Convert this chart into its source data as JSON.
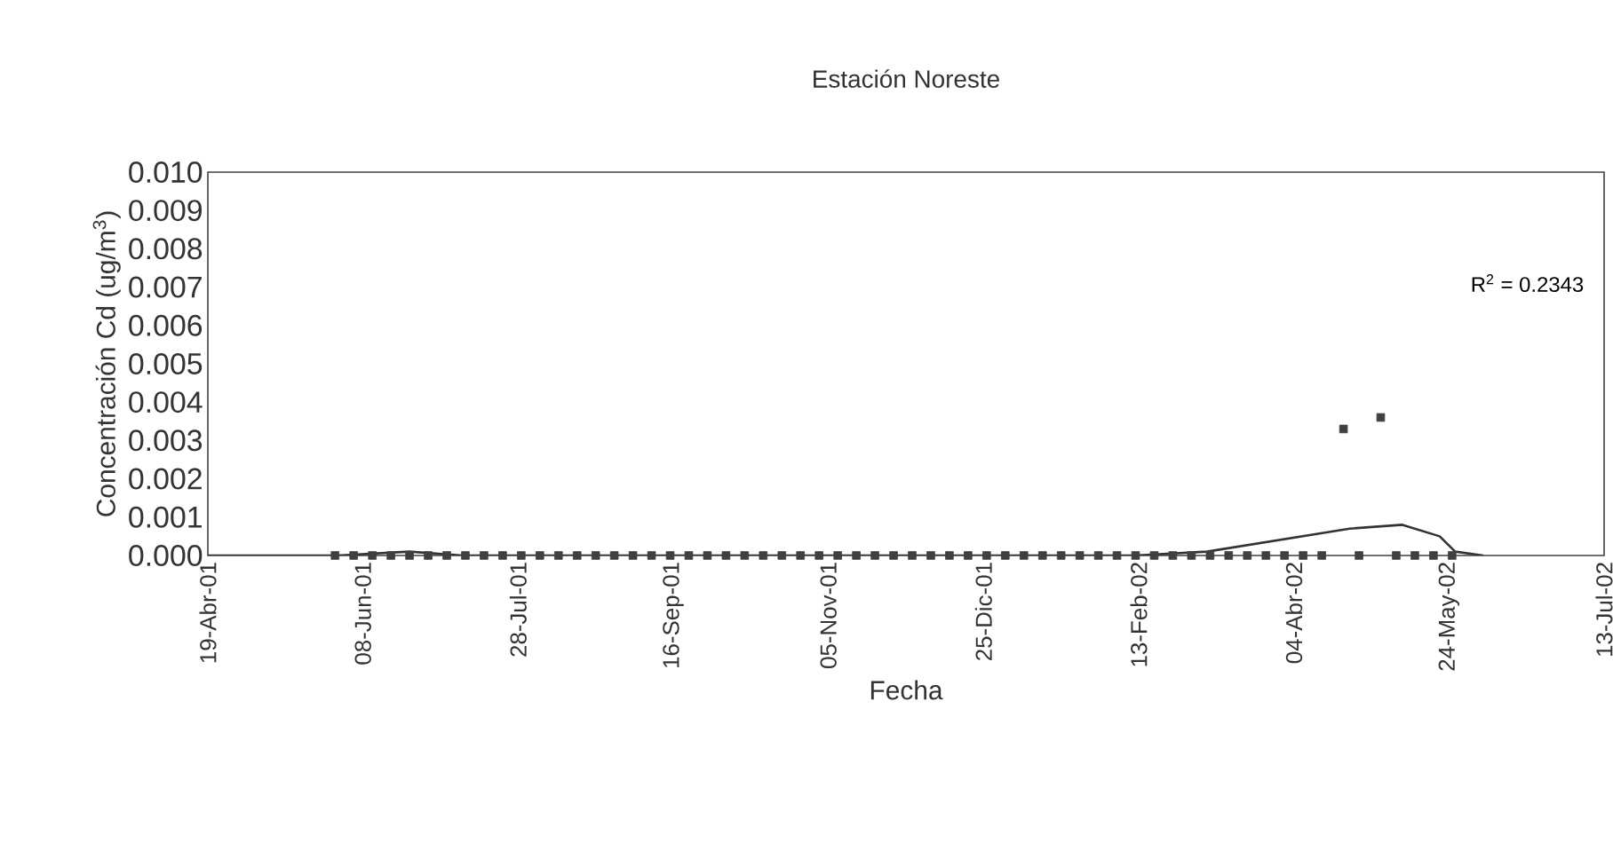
{
  "chart_data": {
    "type": "scatter",
    "title": "Estación Noreste",
    "xlabel": "Fecha",
    "ylabel": "Concentración Cd (ug/m$^{3}$)",
    "xlim": [
      "2001-04-19",
      "2002-07-13"
    ],
    "xticks": [
      {
        "value": "2001-04-19",
        "label": "19-Abr-01"
      },
      {
        "value": "2001-06-08",
        "label": "08-Jun-01"
      },
      {
        "value": "2001-07-28",
        "label": "28-Jul-01"
      },
      {
        "value": "2001-09-16",
        "label": "16-Sep-01"
      },
      {
        "value": "2001-11-05",
        "label": "05-Nov-01"
      },
      {
        "value": "2001-12-25",
        "label": "25-Dic-01"
      },
      {
        "value": "2002-02-13",
        "label": "13-Feb-02"
      },
      {
        "value": "2002-04-04",
        "label": "04-Abr-02"
      },
      {
        "value": "2002-05-24",
        "label": "24-May-02"
      },
      {
        "value": "2002-07-13",
        "label": "13-Jul-02"
      }
    ],
    "ylim": [
      0,
      0.01
    ],
    "yticks": [
      {
        "value": 0,
        "label": "0.000"
      },
      {
        "value": 0.001,
        "label": "0.001"
      },
      {
        "value": 0.002,
        "label": "0.002"
      },
      {
        "value": 0.003,
        "label": "0.003"
      },
      {
        "value": 0.004,
        "label": "0.004"
      },
      {
        "value": 0.005,
        "label": "0.005"
      },
      {
        "value": 0.006,
        "label": "0.006"
      },
      {
        "value": 0.007,
        "label": "0.007"
      },
      {
        "value": 0.008,
        "label": "0.008"
      },
      {
        "value": 0.009,
        "label": "0.009"
      },
      {
        "value": 0.01,
        "label": "0.010"
      }
    ],
    "series": [
      {
        "marker": "square",
        "color": "#404040",
        "x": [
          "2001-05-30",
          "2001-06-05",
          "2001-06-11",
          "2001-06-17",
          "2001-06-23",
          "2001-06-29",
          "2001-07-05",
          "2001-07-11",
          "2001-07-17",
          "2001-07-23",
          "2001-07-29",
          "2001-08-04",
          "2001-08-10",
          "2001-08-16",
          "2001-08-22",
          "2001-08-28",
          "2001-09-03",
          "2001-09-09",
          "2001-09-15",
          "2001-09-21",
          "2001-09-27",
          "2001-10-03",
          "2001-10-09",
          "2001-10-15",
          "2001-10-21",
          "2001-10-27",
          "2001-11-02",
          "2001-11-08",
          "2001-11-14",
          "2001-11-20",
          "2001-11-26",
          "2001-12-02",
          "2001-12-08",
          "2001-12-14",
          "2001-12-20",
          "2001-12-26",
          "2002-01-01",
          "2002-01-07",
          "2002-01-13",
          "2002-01-19",
          "2002-01-25",
          "2002-01-31",
          "2002-02-06",
          "2002-02-12",
          "2002-02-18",
          "2002-02-24",
          "2002-03-02",
          "2002-03-08",
          "2002-03-14",
          "2002-03-20",
          "2002-03-26",
          "2002-04-01",
          "2002-04-07",
          "2002-04-13",
          "2002-04-20",
          "2002-04-25",
          "2002-05-02",
          "2002-05-07",
          "2002-05-13",
          "2002-05-19",
          "2002-05-25"
        ],
        "values": [
          0,
          0,
          0,
          0,
          0,
          0,
          0,
          0,
          0,
          0,
          0,
          0,
          0,
          0,
          0,
          0,
          0,
          0,
          0,
          0,
          0,
          0,
          0,
          0,
          0,
          0,
          0,
          0,
          0,
          0,
          0,
          0,
          0,
          0,
          0,
          0,
          0,
          0,
          0,
          0,
          0,
          0,
          0,
          0,
          0,
          0,
          0,
          0,
          0,
          0,
          0,
          0,
          0,
          0,
          0.0033,
          0,
          0.0036,
          0,
          0,
          0,
          0
        ]
      },
      {
        "type": "line",
        "marker": "none",
        "color": "#333333",
        "x": [
          "2001-04-19",
          "2001-05-31",
          "2001-06-23",
          "2001-07-10",
          "2001-07-27",
          "2001-11-07",
          "2002-02-12",
          "2002-03-07",
          "2002-03-30",
          "2002-04-22",
          "2002-05-09",
          "2002-05-21",
          "2002-05-26",
          "2002-06-04"
        ],
        "values": [
          0,
          0,
          0.0001,
          0,
          0,
          0,
          0,
          0.0001,
          0.0004,
          0.0007,
          0.0008,
          0.0005,
          0.0001,
          0
        ]
      }
    ],
    "annotations": [
      "R$^{2}$ = 0.2343"
    ]
  }
}
